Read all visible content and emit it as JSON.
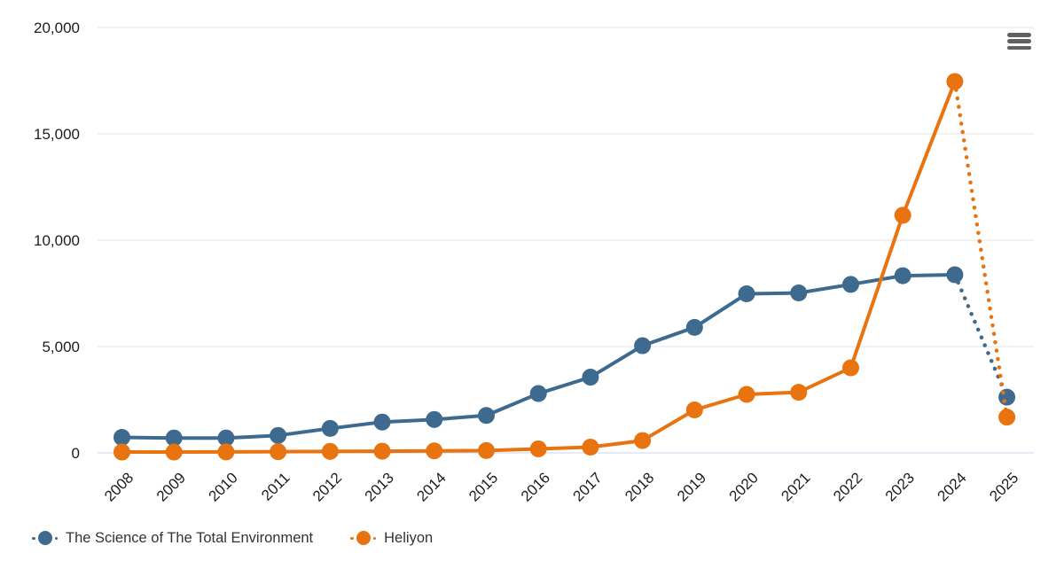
{
  "chart_data": {
    "type": "line",
    "title": "",
    "xlabel": "",
    "ylabel": "",
    "x_categories": [
      "2008",
      "2009",
      "2010",
      "2011",
      "2012",
      "2013",
      "2014",
      "2015",
      "2016",
      "2017",
      "2018",
      "2019",
      "2020",
      "2021",
      "2022",
      "2023",
      "2024",
      "2025"
    ],
    "y_ticks": [
      0,
      5000,
      10000,
      15000,
      20000
    ],
    "y_tick_labels": [
      "0",
      "5,000",
      "10,000",
      "15,000",
      "20,000"
    ],
    "ylim": [
      0,
      20000
    ],
    "grid": true,
    "legend_position": "bottom-left",
    "note": "final segment 2024-2025 drawn dotted for both series",
    "colors": {
      "grid_line": "#e6e6e6",
      "axis_line": "#ccd6eb",
      "tick_text": "#1d1d1d",
      "legend_text": "#333333",
      "menu_icon": "#616161"
    },
    "series": [
      {
        "name": "The Science of The Total Environment",
        "color": "#3d6a8e",
        "values": [
          730,
          700,
          700,
          820,
          1150,
          1450,
          1570,
          1760,
          2790,
          3560,
          5040,
          5900,
          7480,
          7520,
          7920,
          8330,
          8375,
          2620
        ]
      },
      {
        "name": "Heliyon",
        "color": "#e8730f",
        "values": [
          40,
          40,
          45,
          55,
          70,
          80,
          95,
          110,
          190,
          270,
          580,
          2020,
          2750,
          2850,
          4000,
          11170,
          17460,
          1680
        ]
      }
    ]
  },
  "controls": {
    "menu_tooltip": "Chart context menu"
  }
}
